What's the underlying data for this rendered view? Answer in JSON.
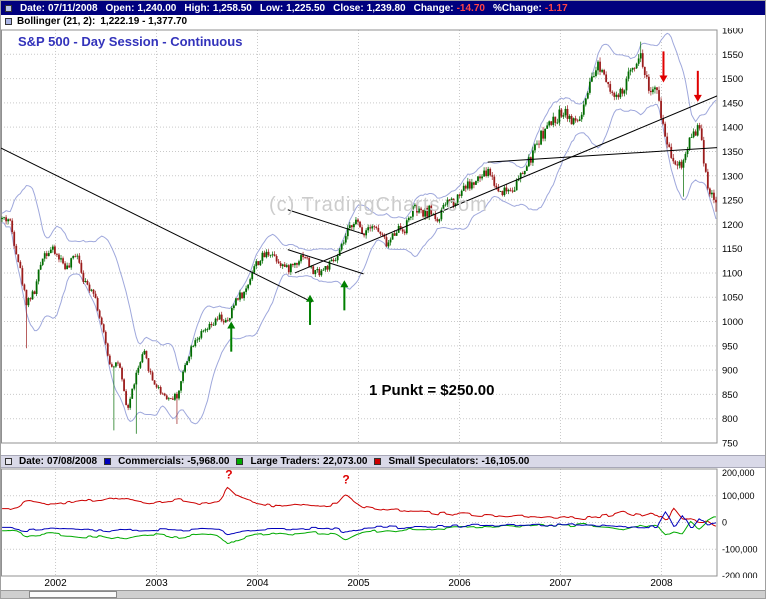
{
  "header": {
    "date_label": "Date:",
    "date": "07/11/2008",
    "open_label": "Open:",
    "open": "1,240.00",
    "high_label": "High:",
    "high": "1,258.50",
    "low_label": "Low:",
    "low": "1,225.50",
    "close_label": "Close:",
    "close": "1,239.80",
    "change_label": "Change:",
    "change": "-14.70",
    "pct_change_label": "%Change:",
    "pct_change": "-1.17"
  },
  "bollinger": {
    "label": "Bollinger (21, 2):",
    "value": "1,222.19 - 1,377.70"
  },
  "cot_header": {
    "date_label": "Date:",
    "date": "07/08/2008",
    "commercials_label": "Commercials:",
    "commercials": "-5,968.00",
    "large_label": "Large Traders:",
    "large": "22,073.00",
    "small_label": "Small Speculators:",
    "small": "-16,105.00"
  },
  "colors": {
    "negative_value": "#ff4545",
    "title_blue": "#3333bb",
    "watermark_gray": "#cccccc",
    "header_navy": "#00007e",
    "legend_bar": "#d9d9e8"
  },
  "chart_data": [
    {
      "type": "candlestick",
      "title": "S&P 500 - Day Session - Continuous",
      "watermark": "(c) TradingCharts.com",
      "annotation": "1 Punkt = $250.00",
      "y_axis": {
        "min": 750,
        "max": 1600,
        "step": 50
      },
      "x_range": [
        2001.46,
        2008.55
      ],
      "x_year_ticks": [
        2002,
        2003,
        2004,
        2005,
        2006,
        2007,
        2008
      ],
      "monthly_start": 2001.5417,
      "monthly_close": [
        1211,
        1134,
        1041,
        1060,
        1139,
        1148,
        1130,
        1107,
        1147,
        1077,
        1067,
        990,
        911,
        916,
        815,
        886,
        936,
        880,
        856,
        841,
        848,
        917,
        964,
        975,
        990,
        1008,
        996,
        1051,
        1058,
        1112,
        1131,
        1145,
        1126,
        1107,
        1121,
        1141,
        1102,
        1104,
        1115,
        1130,
        1174,
        1212,
        1181,
        1204,
        1181,
        1157,
        1192,
        1191,
        1234,
        1220,
        1229,
        1207,
        1249,
        1248,
        1280,
        1281,
        1295,
        1311,
        1270,
        1270,
        1277,
        1304,
        1336,
        1378,
        1401,
        1418,
        1438,
        1407,
        1421,
        1482,
        1531,
        1503,
        1455,
        1474,
        1527,
        1549,
        1481,
        1468,
        1378,
        1330,
        1323,
        1386,
        1400,
        1280,
        1240
      ],
      "extremes": [
        {
          "t": 2001.71,
          "low": 945
        },
        {
          "t": 2002.56,
          "low": 776
        },
        {
          "t": 2002.79,
          "low": 769
        },
        {
          "t": 2003.2,
          "low": 789
        },
        {
          "t": 2007.79,
          "high": 1576
        },
        {
          "t": 2008.2,
          "low": 1257
        },
        {
          "t": 2008.52,
          "low": 1226
        }
      ],
      "bollinger_period": 21,
      "bollinger_mult": 2,
      "colors": {
        "up": "#006b00",
        "down": "#9b1c1c",
        "band": "#9fa8dc",
        "grid": "#c9c9c9",
        "trend": "#000000"
      },
      "trendlines": [
        [
          2001.46,
          1357,
          2004.54,
          1040
        ],
        [
          2004.37,
          1100,
          2008.96,
          1500
        ],
        [
          2006.28,
          1328,
          2009.02,
          1364
        ],
        [
          2004.3,
          1230,
          2005.05,
          1180
        ],
        [
          2004.3,
          1148,
          2005.05,
          1098
        ]
      ],
      "arrows": [
        {
          "t": 2003.74,
          "tip": 1000,
          "tail": 938,
          "dir": "up",
          "color": "#008000"
        },
        {
          "t": 2004.52,
          "tip": 1055,
          "tail": 993,
          "dir": "up",
          "color": "#008000"
        },
        {
          "t": 2004.86,
          "tip": 1085,
          "tail": 1023,
          "dir": "up",
          "color": "#008000"
        },
        {
          "t": 2008.02,
          "tip": 1492,
          "tail": 1556,
          "dir": "down",
          "color": "#e00000"
        },
        {
          "t": 2008.36,
          "tip": 1452,
          "tail": 1516,
          "dir": "down",
          "color": "#e00000"
        }
      ]
    },
    {
      "type": "line",
      "name": "Commitments of Traders",
      "y_axis": {
        "min": -200000,
        "max": 200000,
        "step": 100000
      },
      "x_range": [
        2001.46,
        2008.55
      ],
      "monthly_start": 2001.5417,
      "series": [
        {
          "name": "Small Speculators",
          "color": "#cc0000",
          "legend_square": "small-speculators-swatch-icon",
          "values": [
            50000,
            60000,
            80000,
            75000,
            70000,
            65000,
            70000,
            75000,
            80000,
            85000,
            80000,
            85000,
            95000,
            85000,
            90000,
            80000,
            75000,
            70000,
            75000,
            80000,
            85000,
            80000,
            75000,
            70000,
            75000,
            85000,
            130000,
            100000,
            85000,
            75000,
            70000,
            65000,
            60000,
            65000,
            70000,
            65000,
            60000,
            62000,
            65000,
            70000,
            105000,
            80000,
            60000,
            55000,
            50000,
            45000,
            50000,
            45000,
            40000,
            42000,
            38000,
            33000,
            36000,
            30000,
            33000,
            28000,
            25000,
            28000,
            24000,
            20000,
            24000,
            27000,
            22000,
            18000,
            22000,
            18000,
            22000,
            18000,
            14000,
            18000,
            22000,
            26000,
            32000,
            42000,
            30000,
            26000,
            36000,
            30000,
            5000,
            50000,
            10000,
            15000,
            5000,
            5000,
            -16105
          ]
        },
        {
          "name": "Large Traders",
          "color": "#00aa00",
          "legend_square": "large-traders-swatch-icon",
          "values": [
            -30000,
            -35000,
            -50000,
            -48000,
            -45000,
            -42000,
            -45000,
            -48000,
            -52000,
            -55000,
            -52000,
            -55000,
            -62000,
            -56000,
            -60000,
            -52000,
            -48000,
            -45000,
            -48000,
            -52000,
            -56000,
            -52000,
            -48000,
            -45000,
            -48000,
            -55000,
            -85000,
            -65000,
            -55000,
            -48000,
            -45000,
            -42000,
            -38000,
            -42000,
            -45000,
            -42000,
            -38000,
            -40000,
            -42000,
            -45000,
            -68000,
            -52000,
            -38000,
            -35000,
            -32000,
            -28000,
            -32000,
            -28000,
            -25000,
            -27000,
            -24000,
            -20000,
            -23000,
            -18000,
            -20000,
            -17000,
            -15000,
            -17000,
            -14000,
            -11000,
            -14000,
            -16000,
            -13000,
            -10000,
            -13000,
            -10000,
            -12000,
            -10000,
            -7000,
            -10000,
            -12000,
            -14000,
            -18000,
            -24000,
            -14000,
            -10000,
            -18000,
            -14000,
            -45000,
            -30000,
            -40000,
            10000,
            -25000,
            5000,
            22073
          ]
        },
        {
          "name": "Commercials",
          "color": "#0000bb",
          "legend_square": "commercials-swatch-icon",
          "values": [
            -20000,
            -25000,
            -30000,
            -27000,
            -25000,
            -23000,
            -25000,
            -27000,
            -28000,
            -30000,
            -28000,
            -30000,
            -33000,
            -29000,
            -30000,
            -28000,
            -27000,
            -25000,
            -27000,
            -28000,
            -29000,
            -28000,
            -27000,
            -25000,
            -27000,
            -30000,
            -45000,
            -35000,
            -30000,
            -27000,
            -25000,
            -23000,
            -22000,
            -23000,
            -25000,
            -23000,
            -22000,
            -22000,
            -23000,
            -25000,
            -37000,
            -28000,
            -22000,
            -20000,
            -18000,
            -17000,
            -18000,
            -17000,
            -15000,
            -15000,
            -14000,
            -13000,
            -13000,
            -12000,
            -13000,
            -11000,
            -10000,
            -11000,
            -10000,
            -9000,
            -10000,
            -11000,
            -9000,
            -8000,
            -9000,
            -8000,
            -10000,
            -8000,
            -7000,
            -8000,
            -10000,
            -12000,
            -14000,
            -18000,
            -16000,
            -16000,
            -18000,
            -16000,
            40000,
            -20000,
            30000,
            -25000,
            20000,
            -10000,
            -5968
          ]
        }
      ],
      "annotations": [
        {
          "t": 2003.71,
          "value": 165000,
          "text": "?"
        },
        {
          "t": 2004.87,
          "value": 145000,
          "text": "?"
        }
      ]
    }
  ]
}
